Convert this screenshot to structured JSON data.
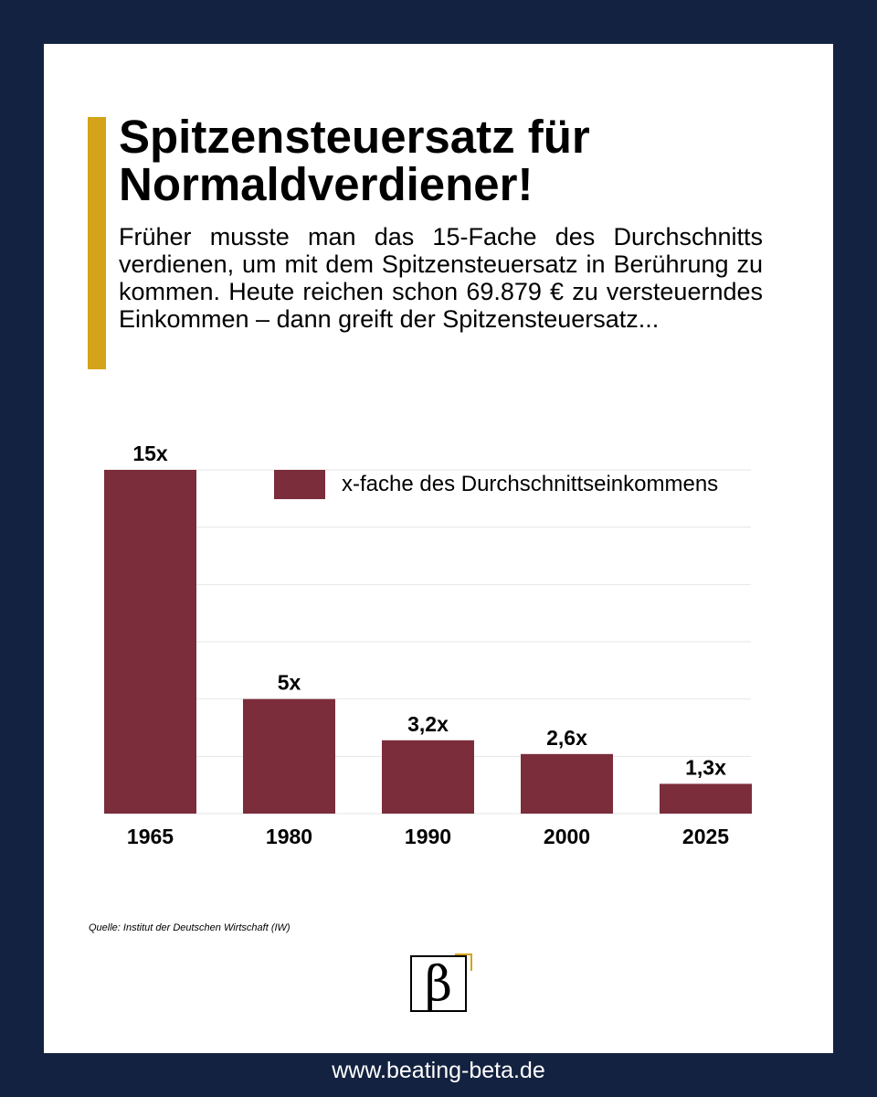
{
  "header": {
    "title": "Spitzensteuersatz für Normaldverdiener!",
    "subtitle": "Früher musste man das 15-Fache des Durchschnitts verdienen, um mit dem Spitzensteuersatz in Berührung zu kommen. Heute reichen schon 69.879 € zu versteuerndes Einkommen – dann greift der Spitzensteuersatz..."
  },
  "colors": {
    "background": "#132240",
    "accent": "#d3a419",
    "bar": "#7b2d3b",
    "grid": "#e6e6e6"
  },
  "chart_data": {
    "type": "bar",
    "categories": [
      "1965",
      "1980",
      "1990",
      "2000",
      "2025"
    ],
    "series": [
      {
        "name": "x-fache des Durchschnittseinkommens",
        "values": [
          15,
          5,
          3.2,
          2.6,
          1.3
        ]
      }
    ],
    "data_labels": [
      "15x",
      "5x",
      "3,2x",
      "2,6x",
      "1,3x"
    ],
    "ylim": [
      0,
      15
    ],
    "grid_step": 2.5,
    "grid": true,
    "legend_position": "top-right"
  },
  "source": "Quelle: Institut der Deutschen Wirtschaft (IW)",
  "logo": {
    "glyph": "β",
    "icon": "beta-logo-icon"
  },
  "footer": {
    "url": "www.beating-beta.de"
  }
}
